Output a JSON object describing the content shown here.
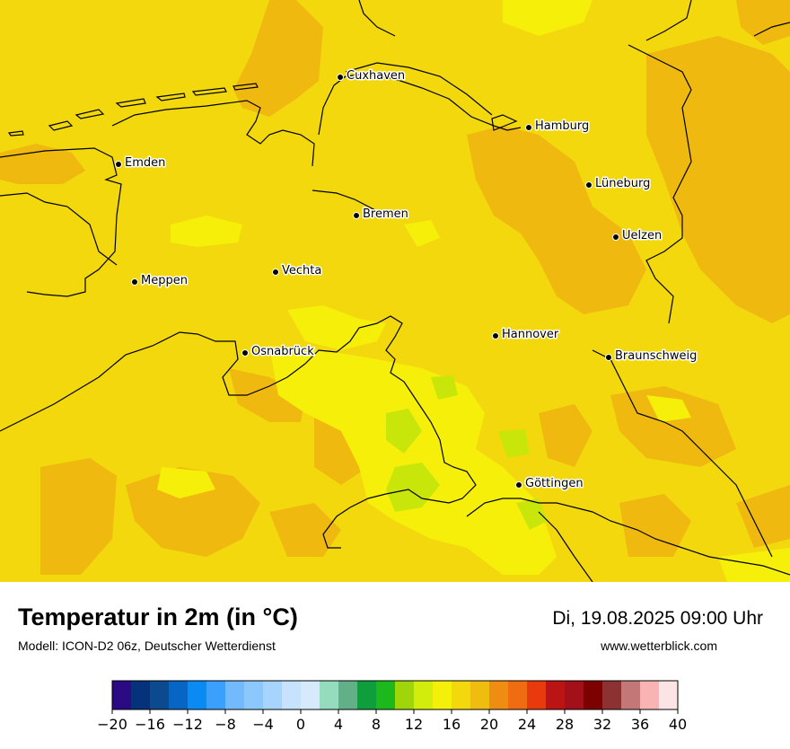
{
  "title": "Temperatur in 2m (in °C)",
  "model": "Modell: ICON-D2 06z, Deutscher Wetterdienst",
  "datetime": "Di, 19.08.2025 09:00 Uhr",
  "website": "www.wetterblick.com",
  "colors": {
    "base_field": "#f2d80c",
    "warm_field": "#efb90f",
    "cool_field": "#f5ef0a",
    "cooler_field": "#e7f20a",
    "green_field": "#c9e60a"
  },
  "cities": [
    {
      "name": "Cuxhaven"
    },
    {
      "name": "Hamburg"
    },
    {
      "name": "Emden"
    },
    {
      "name": "Lüneburg"
    },
    {
      "name": "Bremen"
    },
    {
      "name": "Uelzen"
    },
    {
      "name": "Vechta"
    },
    {
      "name": "Meppen"
    },
    {
      "name": "Hannover"
    },
    {
      "name": "Osnabrück"
    },
    {
      "name": "Braunschweig"
    },
    {
      "name": "Göttingen"
    }
  ],
  "legend": {
    "ticks": [
      "−20",
      "−16",
      "−12",
      "−8",
      "−4",
      "0",
      "4",
      "8",
      "12",
      "16",
      "20",
      "24",
      "28",
      "32",
      "36",
      "40"
    ],
    "colors": [
      "#2b0a84",
      "#06327c",
      "#0b4a8e",
      "#0766c4",
      "#0a8af3",
      "#3aa0fb",
      "#73bafc",
      "#8dc8fc",
      "#a6d4fc",
      "#c6e2fc",
      "#d7eafc",
      "#95dbbd",
      "#62b088",
      "#0e9e3b",
      "#1db81c",
      "#9fd60a",
      "#d2ec0b",
      "#f5f00a",
      "#f2d80c",
      "#efbc10",
      "#ef8c12",
      "#ef6c11",
      "#e83a0c",
      "#bb1414",
      "#a4101a",
      "#7e0101",
      "#8c3232",
      "#c47777",
      "#fab3b3",
      "#fde4e4"
    ]
  }
}
